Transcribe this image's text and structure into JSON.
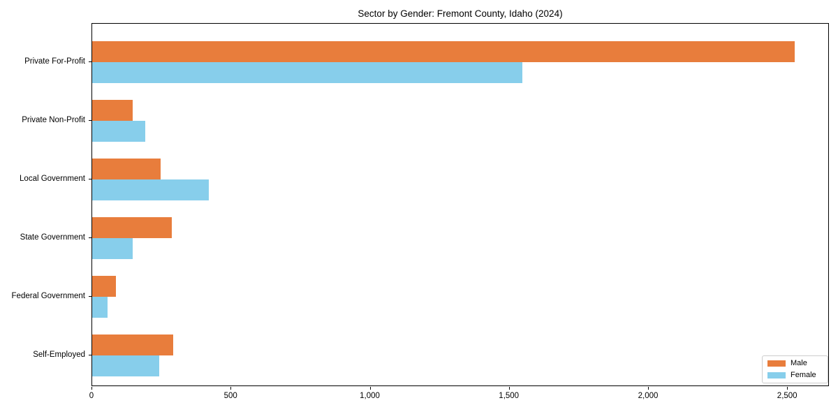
{
  "title": "Sector by Gender: Fremont County, Idaho (2024)",
  "colors": {
    "male": "#E87D3C",
    "female": "#87CEEB",
    "axis": "#000000",
    "background": "#ffffff",
    "legend_border": "#cccccc"
  },
  "legend": {
    "items": [
      {
        "label": "Male",
        "color": "#E87D3C"
      },
      {
        "label": "Female",
        "color": "#87CEEB"
      }
    ]
  },
  "chart_data": {
    "type": "bar",
    "orientation": "horizontal",
    "title": "Sector by Gender: Fremont County, Idaho (2024)",
    "categories": [
      "Private For-Profit",
      "Private Non-Profit",
      "Local Government",
      "State Government",
      "Federal Government",
      "Self-Employed"
    ],
    "series": [
      {
        "name": "Male",
        "color": "#E87D3C",
        "values": [
          2525,
          145,
          245,
          285,
          85,
          290
        ]
      },
      {
        "name": "Female",
        "color": "#87CEEB",
        "values": [
          1545,
          190,
          420,
          145,
          55,
          240
        ]
      }
    ],
    "xlabel": "",
    "ylabel": "",
    "xlim": [
      0,
      2650
    ],
    "xticks": [
      0,
      500,
      1000,
      1500,
      2000,
      2500
    ],
    "xtick_labels": [
      "0",
      "500",
      "1,000",
      "1,500",
      "2,000",
      "2,500"
    ],
    "grid": false,
    "legend_position": "lower right"
  }
}
